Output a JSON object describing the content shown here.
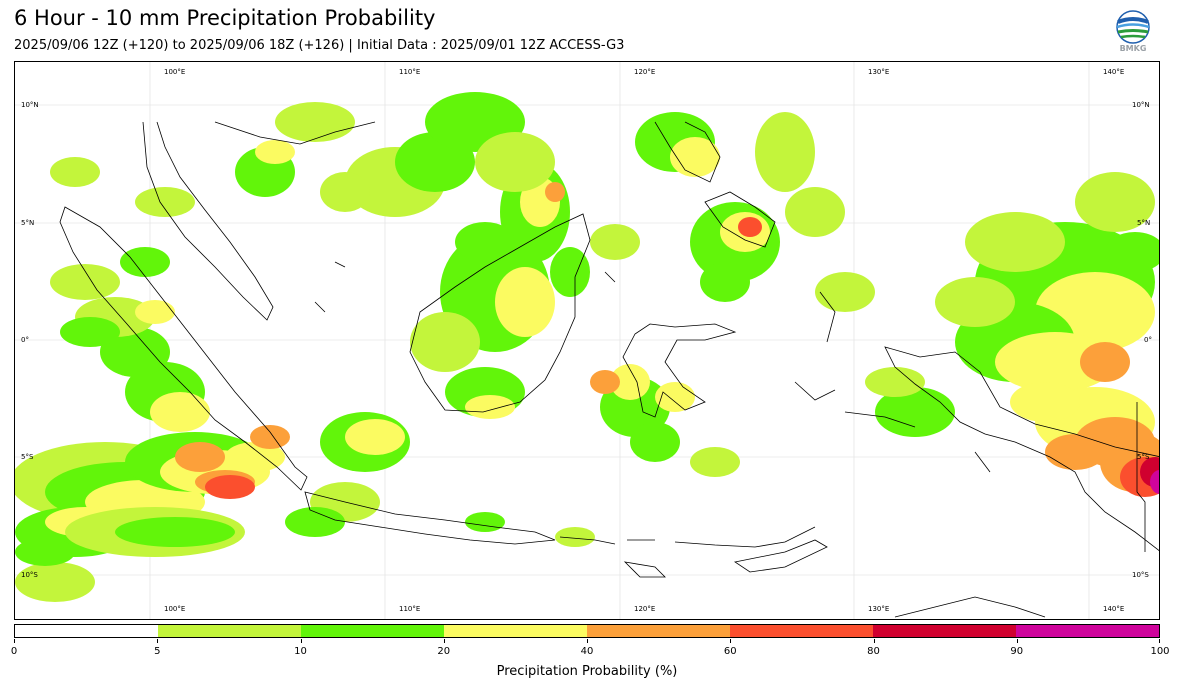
{
  "title": "6 Hour - 10 mm Precipitation Probability",
  "subtitle": "2025/09/06 12Z (+120) to 2025/09/06 18Z (+126) | Initial Data : 2025/09/01 12Z ACCESS-G3",
  "logo": {
    "text": "BMKG",
    "icon": "bmkg-globe-logo"
  },
  "map": {
    "lon_labels": [
      "100°E",
      "110°E",
      "120°E",
      "130°E",
      "140°E"
    ],
    "lat_labels": [
      "10°N",
      "5°N",
      "0°",
      "5°S",
      "10°S"
    ],
    "lon_range": [
      93.2,
      142.2
    ],
    "lat_range": [
      -11.5,
      12.0
    ],
    "gridlines": true
  },
  "colorbar": {
    "label": "Precipitation Probability (%)",
    "ticks": [
      "0",
      "5",
      "10",
      "20",
      "40",
      "60",
      "80",
      "90",
      "100"
    ],
    "bins": [
      {
        "from": 0,
        "to": 5,
        "color": "#ffffff"
      },
      {
        "from": 5,
        "to": 10,
        "color": "#c3f53b"
      },
      {
        "from": 10,
        "to": 20,
        "color": "#62f50a"
      },
      {
        "from": 20,
        "to": 40,
        "color": "#fbfb61"
      },
      {
        "from": 40,
        "to": 60,
        "color": "#fca03a"
      },
      {
        "from": 60,
        "to": 80,
        "color": "#fb4f2e"
      },
      {
        "from": 80,
        "to": 90,
        "color": "#d0002f"
      },
      {
        "from": 90,
        "to": 100,
        "color": "#cf049c"
      }
    ]
  }
}
